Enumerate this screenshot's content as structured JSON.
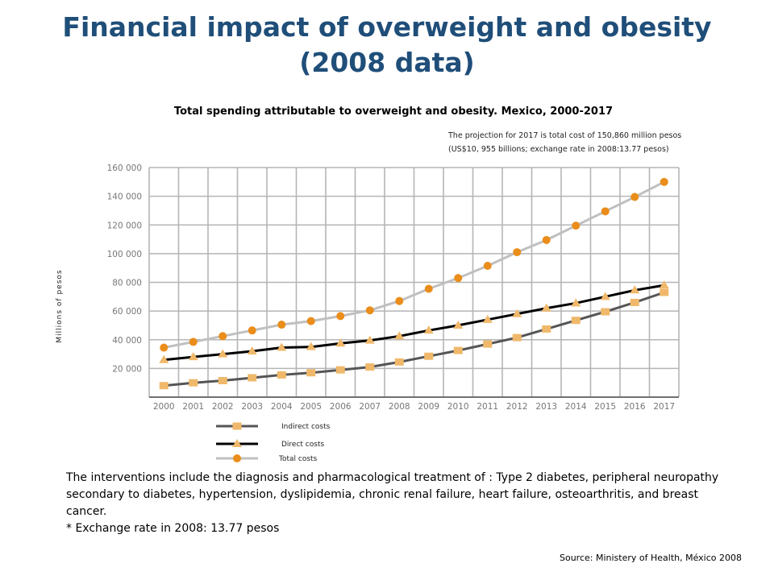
{
  "slide": {
    "title_line1": "Financial impact of overweight and obesity",
    "title_line2": "(2008 data)",
    "projection_note_line1": "The projection for 2017 is  total cost of  150,860 million pesos",
    "projection_note_line2": "(US$10, 955 billions; exchange rate in 2008:13.77 pesos)",
    "body_paragraph": "The interventions include the diagnosis and pharmacological treatment of : Type 2 diabetes, peripheral neuropathy secondary to diabetes, hypertension, dyslipidemia,  chronic renal failure, heart failure, osteoarthritis, and breast cancer.",
    "body_note": "* Exchange rate in 2008: 13.77 pesos",
    "source": "Source: Ministery of Health, México 2008"
  },
  "chart_data": {
    "type": "line",
    "title": "Total spending attributable to overweight and obesity. Mexico, 2000-2017",
    "ylabel": "Millions of pesos",
    "xlabel": "",
    "x": [
      "2000",
      "2001",
      "2002",
      "2003",
      "2004",
      "2005",
      "2006",
      "2007",
      "2008",
      "2009",
      "2010",
      "2011",
      "2012",
      "2013",
      "2014",
      "2015",
      "2016",
      "2017"
    ],
    "ylim": [
      0,
      160000
    ],
    "y_tick_values": [
      20000,
      40000,
      60000,
      80000,
      100000,
      120000,
      140000,
      160000
    ],
    "y_tick_labels": [
      "20 000",
      "40 000",
      "60 000",
      "80 000",
      "100 000",
      "120 000",
      "140 000",
      "160 000"
    ],
    "grid": true,
    "legend_position": "bottom-left",
    "series": [
      {
        "name": "Indirect costs",
        "line_color": "#555555",
        "marker": "square",
        "marker_color": "#f0b86a",
        "values": [
          8000,
          10000,
          11500,
          13500,
          15500,
          17000,
          19000,
          21000,
          24500,
          28500,
          32500,
          37000,
          41500,
          47500,
          53500,
          59500,
          66000,
          73000
        ]
      },
      {
        "name": "Direct costs",
        "line_color": "#000000",
        "marker": "triangle",
        "marker_color": "#f0b86a",
        "values": [
          26000,
          28000,
          30000,
          32000,
          34500,
          35000,
          37500,
          39500,
          42500,
          46500,
          50000,
          54000,
          58000,
          62000,
          65500,
          70000,
          74500,
          78000
        ]
      },
      {
        "name": "Total costs",
        "line_color": "#c0c0c0",
        "marker": "circle",
        "marker_color": "#ea8d1a",
        "values": [
          34500,
          38500,
          42500,
          46500,
          50500,
          53000,
          56500,
          60500,
          67000,
          75500,
          83000,
          91500,
          101000,
          109500,
          119500,
          129500,
          139500,
          150000
        ]
      }
    ]
  }
}
